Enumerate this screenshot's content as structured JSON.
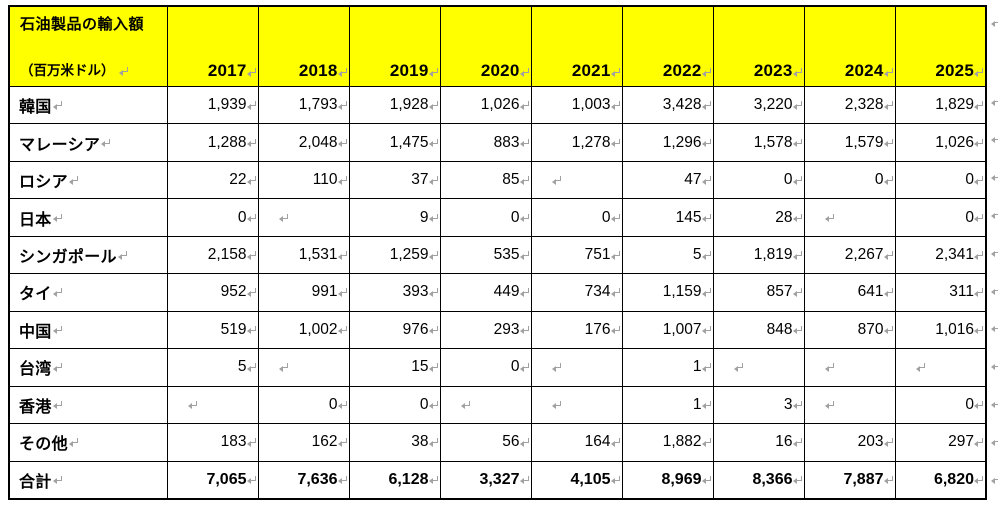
{
  "table": {
    "title": "石油製品の輸入額",
    "unit": "（百万米ドル）",
    "years": [
      "2017",
      "2018",
      "2019",
      "2020",
      "2021",
      "2022",
      "2023",
      "2024",
      "2025"
    ],
    "rows": [
      {
        "label": "韓国",
        "values": [
          "1,939",
          "1,793",
          "1,928",
          "1,026",
          "1,003",
          "3,428",
          "3,220",
          "2,328",
          "1,829"
        ]
      },
      {
        "label": "マレーシア",
        "values": [
          "1,288",
          "2,048",
          "1,475",
          "883",
          "1,278",
          "1,296",
          "1,578",
          "1,579",
          "1,026"
        ]
      },
      {
        "label": "ロシア",
        "values": [
          "22",
          "110",
          "37",
          "85",
          "",
          "47",
          "0",
          "0",
          "0"
        ]
      },
      {
        "label": "日本",
        "values": [
          "0",
          "",
          "9",
          "0",
          "0",
          "145",
          "28",
          "",
          "0"
        ]
      },
      {
        "label": "シンガポール",
        "values": [
          "2,158",
          "1,531",
          "1,259",
          "535",
          "751",
          "5",
          "1,819",
          "2,267",
          "2,341"
        ]
      },
      {
        "label": "タイ",
        "values": [
          "952",
          "991",
          "393",
          "449",
          "734",
          "1,159",
          "857",
          "641",
          "311"
        ]
      },
      {
        "label": "中国",
        "values": [
          "519",
          "1,002",
          "976",
          "293",
          "176",
          "1,007",
          "848",
          "870",
          "1,016"
        ]
      },
      {
        "label": "台湾",
        "values": [
          "5",
          "",
          "15",
          "0",
          "",
          "1",
          "",
          "",
          ""
        ]
      },
      {
        "label": "香港",
        "values": [
          "",
          "0",
          "0",
          "",
          "",
          "1",
          "3",
          "",
          "0"
        ]
      },
      {
        "label": "その他",
        "values": [
          "183",
          "162",
          "38",
          "56",
          "164",
          "1,882",
          "16",
          "203",
          "297"
        ]
      },
      {
        "label": "合計",
        "values": [
          "7,065",
          "7,636",
          "6,128",
          "3,327",
          "4,105",
          "8,969",
          "8,366",
          "7,887",
          "6,820"
        ],
        "total": true
      }
    ],
    "colors": {
      "header_bg": "#ffff00",
      "border": "#000000",
      "text": "#000000",
      "format_mark": "#a1a1a1",
      "page_bg": "#ffffff"
    }
  }
}
